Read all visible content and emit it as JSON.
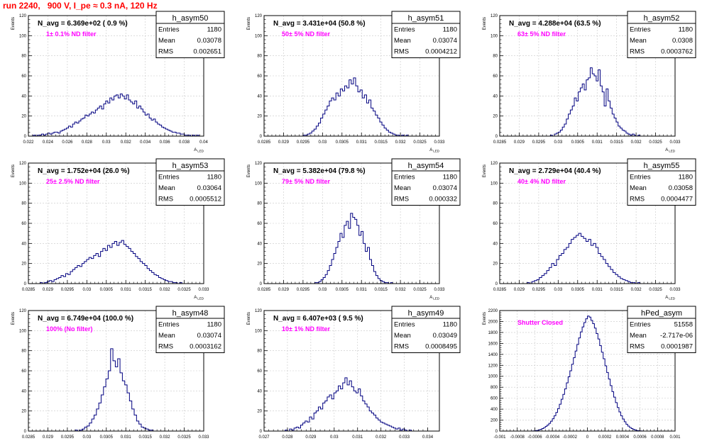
{
  "canvas": {
    "title": "run 2240,   900 V, I_pe ≈ 0.3 nA, 120 Hz"
  },
  "colors": {
    "title": "#ff0000",
    "filter_label": "#ff00ff",
    "histogram_line": "#000080",
    "grid": "#c8c8c8"
  },
  "chart_data": [
    {
      "type": "histogram",
      "name": "h_asym50",
      "ylabel": "Events",
      "xlabel": "A_LED",
      "annotation": "N_avg = 6.369e+02 ( 0.9 %)",
      "filter_label": "1± 0.1% ND filter",
      "xlim": [
        0.022,
        0.04
      ],
      "ylim": [
        0,
        120
      ],
      "xticks": [
        "0.022",
        "0.024",
        "0.026",
        "0.028",
        "0.03",
        "0.032",
        "0.034",
        "0.036",
        "0.038",
        "0.04"
      ],
      "yticks": [
        "0",
        "20",
        "40",
        "60",
        "80",
        "100",
        "120"
      ],
      "grid": true,
      "stats": {
        "Entries": "1180",
        "Mean": "0.03078",
        "RMS": "0.002651"
      },
      "bin_range": [
        0.0225,
        0.0395
      ],
      "values": [
        1,
        0,
        1,
        1,
        2,
        1,
        2,
        3,
        2,
        3,
        4,
        4,
        3,
        5,
        6,
        7,
        8,
        10,
        9,
        12,
        14,
        13,
        15,
        17,
        18,
        21,
        20,
        22,
        24,
        23,
        26,
        28,
        30,
        27,
        32,
        35,
        33,
        38,
        36,
        40,
        41,
        38,
        42,
        40,
        37,
        41,
        36,
        34,
        32,
        35,
        28,
        30,
        27,
        24,
        21,
        22,
        18,
        16,
        17,
        14,
        12,
        11,
        9,
        8,
        7,
        6,
        5,
        4,
        4,
        3,
        3,
        2,
        2,
        1,
        1,
        1,
        0,
        1,
        0,
        1
      ]
    },
    {
      "type": "histogram",
      "name": "h_asym51",
      "ylabel": "Events",
      "xlabel": "A_LED",
      "annotation": "N_avg = 3.431e+04 (50.8 %)",
      "filter_label": "50± 5% ND filter",
      "xlim": [
        0.0285,
        0.033
      ],
      "ylim": [
        0,
        120
      ],
      "xticks": [
        "0.0285",
        "0.029",
        "0.0295",
        "0.03",
        "0.0305",
        "0.031",
        "0.0315",
        "0.032",
        "0.0325",
        "0.033"
      ],
      "yticks": [
        "0",
        "20",
        "40",
        "60",
        "80",
        "100",
        "120"
      ],
      "grid": true,
      "stats": {
        "Entries": "1180",
        "Mean": "0.03074",
        "RMS": "0.0004212"
      },
      "bin_range": [
        0.0295,
        0.0322
      ],
      "values": [
        1,
        1,
        2,
        3,
        5,
        7,
        10,
        13,
        18,
        22,
        26,
        30,
        35,
        38,
        36,
        43,
        40,
        47,
        45,
        50,
        48,
        56,
        52,
        58,
        50,
        44,
        46,
        38,
        41,
        33,
        36,
        28,
        25,
        21,
        18,
        14,
        11,
        8,
        6,
        4,
        3,
        2,
        1,
        1,
        0,
        1,
        0,
        1
      ]
    },
    {
      "type": "histogram",
      "name": "h_asym52",
      "ylabel": "Events",
      "xlabel": "A_LED",
      "annotation": "N_avg = 4.288e+04 (63.5 %)",
      "filter_label": "63± 5% ND filter",
      "xlim": [
        0.0285,
        0.033
      ],
      "ylim": [
        0,
        120
      ],
      "xticks": [
        "0.0285",
        "0.029",
        "0.0295",
        "0.03",
        "0.0305",
        "0.031",
        "0.0315",
        "0.032",
        "0.0325",
        "0.033"
      ],
      "yticks": [
        "0",
        "20",
        "40",
        "60",
        "80",
        "100",
        "120"
      ],
      "grid": true,
      "stats": {
        "Entries": "1180",
        "Mean": "0.0308",
        "RMS": "0.0003762"
      },
      "bin_range": [
        0.0298,
        0.0321
      ],
      "values": [
        1,
        0,
        2,
        3,
        4,
        6,
        9,
        12,
        17,
        22,
        26,
        30,
        38,
        35,
        44,
        48,
        52,
        46,
        56,
        58,
        68,
        62,
        60,
        55,
        66,
        50,
        44,
        30,
        47,
        35,
        28,
        22,
        18,
        14,
        10,
        8,
        6,
        5,
        3,
        2,
        1,
        2,
        1,
        0,
        1
      ]
    },
    {
      "type": "histogram",
      "name": "h_asym53",
      "ylabel": "Events",
      "xlabel": "A_LED",
      "annotation": "N_avg = 1.752e+04 (26.0 %)",
      "filter_label": "25± 2.5% ND filter",
      "xlim": [
        0.0285,
        0.033
      ],
      "ylim": [
        0,
        120
      ],
      "xticks": [
        "0.0285",
        "0.029",
        "0.0295",
        "0.03",
        "0.0305",
        "0.031",
        "0.0315",
        "0.032",
        "0.0325",
        "0.033"
      ],
      "yticks": [
        "0",
        "20",
        "40",
        "60",
        "80",
        "100",
        "120"
      ],
      "grid": true,
      "stats": {
        "Entries": "1180",
        "Mean": "0.03064",
        "RMS": "0.0005512"
      },
      "bin_range": [
        0.0288,
        0.0325
      ],
      "values": [
        1,
        0,
        1,
        2,
        3,
        2,
        4,
        5,
        6,
        8,
        7,
        10,
        9,
        12,
        14,
        16,
        18,
        17,
        20,
        22,
        24,
        26,
        25,
        28,
        30,
        27,
        32,
        35,
        33,
        38,
        36,
        40,
        42,
        38,
        41,
        43,
        39,
        37,
        35,
        32,
        30,
        27,
        25,
        22,
        20,
        18,
        15,
        13,
        11,
        9,
        8,
        6,
        5,
        4,
        3,
        2,
        2,
        1,
        1,
        0,
        1,
        0
      ]
    },
    {
      "type": "histogram",
      "name": "h_asym54",
      "ylabel": "Events",
      "xlabel": "A_LED",
      "annotation": "N_avg = 5.382e+04 (79.8 %)",
      "filter_label": "79± 5% ND filter",
      "xlim": [
        0.0285,
        0.033
      ],
      "ylim": [
        0,
        120
      ],
      "xticks": [
        "0.0285",
        "0.029",
        "0.0295",
        "0.03",
        "0.0305",
        "0.031",
        "0.0315",
        "0.032",
        "0.0325",
        "0.033"
      ],
      "yticks": [
        "0",
        "20",
        "40",
        "60",
        "80",
        "100",
        "120"
      ],
      "grid": true,
      "stats": {
        "Entries": "1180",
        "Mean": "0.03074",
        "RMS": "0.000332"
      },
      "bin_range": [
        0.0298,
        0.0318
      ],
      "values": [
        1,
        1,
        2,
        4,
        6,
        9,
        13,
        18,
        24,
        30,
        36,
        42,
        50,
        46,
        58,
        62,
        55,
        70,
        66,
        64,
        58,
        48,
        52,
        40,
        32,
        36,
        24,
        18,
        12,
        8,
        5,
        3,
        2,
        1,
        1,
        0,
        1
      ]
    },
    {
      "type": "histogram",
      "name": "h_asym55",
      "ylabel": "Events",
      "xlabel": "A_LED",
      "annotation": "N_avg = 2.729e+04 (40.4 %)",
      "filter_label": "40± 4% ND filter",
      "xlim": [
        0.0285,
        0.033
      ],
      "ylim": [
        0,
        120
      ],
      "xticks": [
        "0.0285",
        "0.029",
        "0.0295",
        "0.03",
        "0.0305",
        "0.031",
        "0.0315",
        "0.032",
        "0.0325",
        "0.033"
      ],
      "yticks": [
        "0",
        "20",
        "40",
        "60",
        "80",
        "100",
        "120"
      ],
      "grid": true,
      "stats": {
        "Entries": "1180",
        "Mean": "0.03058",
        "RMS": "0.0004477"
      },
      "bin_range": [
        0.0292,
        0.0321
      ],
      "values": [
        1,
        0,
        2,
        3,
        4,
        6,
        8,
        10,
        13,
        16,
        20,
        18,
        24,
        28,
        30,
        34,
        36,
        40,
        44,
        46,
        48,
        50,
        47,
        45,
        42,
        44,
        38,
        40,
        36,
        30,
        27,
        24,
        20,
        17,
        14,
        11,
        9,
        7,
        5,
        4,
        3,
        2,
        1,
        1,
        0,
        1
      ]
    },
    {
      "type": "histogram",
      "name": "h_asym48",
      "ylabel": "Events",
      "xlabel": "A_LED",
      "annotation": "N_avg = 6.749e+04 (100.0 %)",
      "filter_label": "100% (No filter)",
      "xlim": [
        0.0285,
        0.033
      ],
      "ylim": [
        0,
        120
      ],
      "xticks": [
        "0.0285",
        "0.029",
        "0.0295",
        "0.03",
        "0.0305",
        "0.031",
        "0.0315",
        "0.032",
        "0.0325",
        "0.033"
      ],
      "yticks": [
        "0",
        "20",
        "40",
        "60",
        "80",
        "100",
        "120"
      ],
      "grid": true,
      "stats": {
        "Entries": "1180",
        "Mean": "0.03074",
        "RMS": "0.0003162"
      },
      "bin_range": [
        0.0297,
        0.0317
      ],
      "values": [
        1,
        0,
        1,
        2,
        4,
        5,
        8,
        12,
        16,
        22,
        28,
        36,
        44,
        52,
        60,
        82,
        70,
        64,
        72,
        58,
        50,
        46,
        38,
        30,
        22,
        16,
        10,
        7,
        4,
        3,
        2,
        1,
        1
      ]
    },
    {
      "type": "histogram",
      "name": "h_asym49",
      "ylabel": "Events",
      "xlabel": "A_LED",
      "annotation": "N_avg = 6.407e+03 ( 9.5 %)",
      "filter_label": "10± 1% ND filter",
      "xlim": [
        0.027,
        0.0345
      ],
      "ylim": [
        0,
        120
      ],
      "xticks": [
        "0.027",
        "0.028",
        "0.029",
        "0.03",
        "0.031",
        "0.032",
        "0.033",
        "0.034"
      ],
      "yticks": [
        "0",
        "20",
        "40",
        "60",
        "80",
        "100",
        "120"
      ],
      "grid": true,
      "stats": {
        "Entries": "1180",
        "Mean": "0.03049",
        "RMS": "0.0008495"
      },
      "bin_range": [
        0.0279,
        0.0333
      ],
      "values": [
        1,
        0,
        2,
        1,
        3,
        4,
        3,
        6,
        8,
        10,
        9,
        14,
        12,
        18,
        20,
        24,
        22,
        28,
        30,
        34,
        36,
        32,
        38,
        40,
        45,
        42,
        48,
        53,
        46,
        50,
        44,
        40,
        38,
        42,
        35,
        30,
        27,
        24,
        20,
        18,
        16,
        13,
        11,
        9,
        8,
        7,
        6,
        5,
        4,
        3,
        2,
        3,
        1,
        2,
        1,
        0,
        1
      ]
    },
    {
      "type": "histogram",
      "name": "hPed_asym",
      "ylabel": "Events",
      "xlabel": "A_LED",
      "annotation": "",
      "filter_label": "Shutter Closed",
      "xlim": [
        -0.001,
        0.001
      ],
      "ylim": [
        0,
        2200
      ],
      "xticks": [
        "-0.001",
        "-0.0008",
        "-0.0006",
        "-0.0004",
        "-0.0002",
        "0",
        "0.0002",
        "0.0004",
        "0.0006",
        "0.0008",
        "0.001"
      ],
      "yticks": [
        "0",
        "200",
        "400",
        "600",
        "800",
        "1000",
        "1200",
        "1400",
        "1600",
        "1800",
        "2000",
        "2200"
      ],
      "grid": true,
      "stats": {
        "Entries": "51558",
        "Mean": "-2.717e-06",
        "RMS": "0.0001987"
      },
      "bin_range": [
        -0.00064,
        0.00064
      ],
      "values": [
        2,
        4,
        8,
        12,
        20,
        30,
        45,
        62,
        85,
        110,
        140,
        180,
        225,
        280,
        340,
        410,
        490,
        580,
        670,
        770,
        880,
        990,
        1100,
        1220,
        1340,
        1460,
        1580,
        1700,
        1810,
        1900,
        1980,
        2050,
        2100,
        2080,
        2020,
        1960,
        1880,
        1780,
        1680,
        1560,
        1440,
        1320,
        1190,
        1070,
        950,
        830,
        720,
        620,
        520,
        430,
        350,
        280,
        220,
        170,
        125,
        90,
        65,
        45,
        30,
        18,
        10,
        6,
        3,
        2
      ]
    }
  ]
}
